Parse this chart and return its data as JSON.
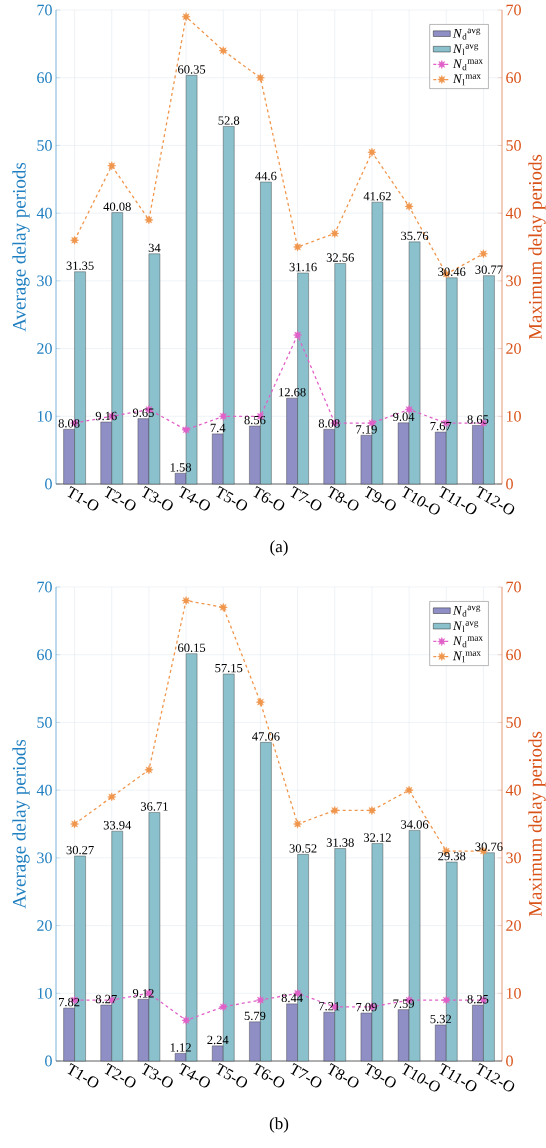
{
  "chart_data": [
    {
      "type": "bar",
      "categories": [
        "T1-O",
        "T2-O",
        "T3-O",
        "T4-O",
        "T5-O",
        "T6-O",
        "T7-O",
        "T8-O",
        "T9-O",
        "T10-O",
        "T11-O",
        "T12-O"
      ],
      "series": [
        {
          "name": "*N*$_{d}$$^{avg}$",
          "color": "#8f8fc6",
          "values": [
            8.08,
            9.16,
            9.65,
            1.58,
            7.4,
            8.56,
            12.68,
            8.08,
            7.19,
            9.04,
            7.67,
            8.65
          ],
          "value_labels": [
            "8.08",
            "9.16",
            "9.65",
            "1.58",
            "7.4",
            "8.56",
            "12.68",
            "8.08",
            "7.19",
            "9.04",
            "7.67",
            "8.65"
          ]
        },
        {
          "name": "*N*$_{l}$$^{avg}$",
          "color": "#8bc1cc",
          "values": [
            31.35,
            40.08,
            34,
            60.35,
            52.8,
            44.6,
            31.16,
            32.56,
            41.62,
            35.76,
            30.46,
            30.77
          ],
          "value_labels": [
            "31.35",
            "40.08",
            "34",
            "60.35",
            "52.8",
            "44.6",
            "31.16",
            "32.56",
            "41.62",
            "35.76",
            "30.46",
            "30.77"
          ]
        },
        {
          "name": "*N*$_{d}$$^{max}$",
          "type": "line",
          "axis": "y2",
          "color": "#e060c8",
          "values": [
            9,
            10,
            11,
            8,
            10,
            10,
            22,
            9,
            9,
            11,
            9,
            9
          ]
        },
        {
          "name": "*N*$_{l}$$^{max}$",
          "type": "line",
          "axis": "y2",
          "color": "#f0964c",
          "values": [
            36,
            47,
            39,
            69,
            64,
            60,
            35,
            37,
            49,
            41,
            31,
            34
          ]
        }
      ],
      "ylabel": "Average delay periods",
      "y2label": "Maximum delay periods",
      "ylim": [
        0,
        70
      ],
      "yticks": [
        0,
        10,
        20,
        30,
        40,
        50,
        60,
        70
      ],
      "y2lim": [
        0,
        70
      ],
      "y2ticks": [
        0,
        10,
        20,
        30,
        40,
        50,
        60,
        70
      ],
      "grid": true,
      "legend": "top right",
      "marker": "star",
      "line_style": "dashed",
      "annotations": [
        "(a)"
      ]
    },
    {
      "type": "bar",
      "categories": [
        "T1-O",
        "T2-O",
        "T3-O",
        "T4-O",
        "T5-O",
        "T6-O",
        "T7-O",
        "T8-O",
        "T9-O",
        "T10-O",
        "T11-O",
        "T12-O"
      ],
      "series": [
        {
          "name": "*N*$_{d}$$^{avg}$",
          "color": "#8f8fc6",
          "values": [
            7.82,
            8.27,
            9.12,
            1.12,
            2.24,
            5.79,
            8.44,
            7.21,
            7.09,
            7.59,
            5.32,
            8.25
          ],
          "value_labels": [
            "7.82",
            "8.27",
            "9.12",
            "1.12",
            "2.24",
            "5.79",
            "8.44",
            "7.21",
            "7.09",
            "7.59",
            "5.32",
            "8.25"
          ]
        },
        {
          "name": "*N*$_{l}$$^{avg}$",
          "color": "#8bc1cc",
          "values": [
            30.27,
            33.94,
            36.71,
            60.15,
            57.15,
            47.06,
            30.52,
            31.38,
            32.12,
            34.06,
            29.38,
            30.76
          ],
          "value_labels": [
            "30.27",
            "33.94",
            "36.71",
            "60.15",
            "57.15",
            "47.06",
            "30.52",
            "31.38",
            "32.12",
            "34.06",
            "29.38",
            "30.76"
          ]
        },
        {
          "name": "*N*$_{d}$$^{max}$",
          "type": "line",
          "axis": "y2",
          "color": "#e060c8",
          "values": [
            9,
            9,
            10,
            6,
            8,
            9,
            10,
            8,
            8,
            9,
            9,
            9
          ]
        },
        {
          "name": "*N*$_{l}$$^{max}$",
          "type": "line",
          "axis": "y2",
          "color": "#f0964c",
          "values": [
            35,
            39,
            43,
            68,
            67,
            53,
            35,
            37,
            37,
            40,
            31,
            31
          ]
        }
      ],
      "ylabel": "Average delay periods",
      "y2label": "Maximum delay periods",
      "ylim": [
        0,
        70
      ],
      "yticks": [
        0,
        10,
        20,
        30,
        40,
        50,
        60,
        70
      ],
      "y2lim": [
        0,
        70
      ],
      "y2ticks": [
        0,
        10,
        20,
        30,
        40,
        50,
        60,
        70
      ],
      "grid": true,
      "legend": "top right",
      "marker": "star",
      "line_style": "dashed",
      "annotations": [
        "(b)"
      ]
    }
  ]
}
